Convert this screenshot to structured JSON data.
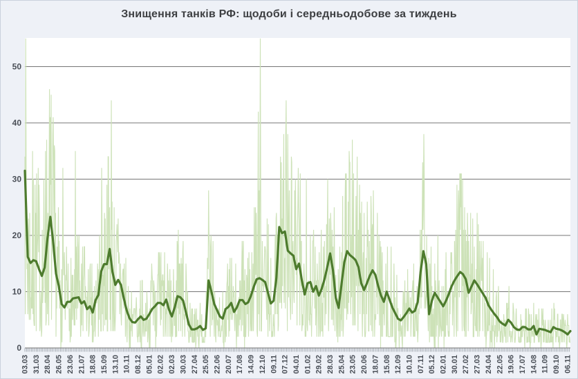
{
  "title": "Знищення танків РФ: щодоби і середньодобове за тиждень",
  "colors": {
    "page_bg": "#eef1f7",
    "plot_bg": "#ffffff",
    "border": "#c9d1dc",
    "daily_line": "#cde2b8",
    "average_line": "#4d7b2d",
    "grid": "#757575",
    "axis_line": "#757575",
    "tick": "#9299a1",
    "axis_text": "#4a4f57",
    "title_text": "#3d3f42"
  },
  "chart_data": {
    "type": "line",
    "title": "Знищення танків РФ: щодоби і середньодобове за тиждень",
    "xlabel": "",
    "ylabel": "",
    "grid": "horizontal",
    "ylim": [
      0,
      55
    ],
    "y_axis": {
      "ticks": [
        0,
        10,
        20,
        30,
        40,
        50
      ]
    },
    "x_axis": {
      "start_label": "03.03",
      "label_step_days": 28,
      "tick_every_days": 4,
      "labels": [
        "03.03",
        "31.03",
        "28.04",
        "26.05",
        "23.06",
        "21.07",
        "18.08",
        "15.09",
        "13.10",
        "10.11",
        "08.12",
        "05.01",
        "02.02",
        "02.03",
        "30.03",
        "27.04",
        "25.05",
        "22.06",
        "20.07",
        "17.08",
        "14.09",
        "12.10",
        "09.11",
        "07.12",
        "04.01",
        "01.02",
        "29.02",
        "28.03",
        "25.04",
        "23.05",
        "20.06",
        "18.07",
        "15.08",
        "12.09",
        "10.10",
        "07.11",
        "05.12",
        "02.01",
        "30.01",
        "27.02",
        "27.03",
        "24.04",
        "22.05",
        "19.06",
        "17.07",
        "14.08",
        "11.09",
        "09.10",
        "06.11"
      ]
    },
    "series": [
      {
        "name": "щодоби",
        "role": "daily",
        "color_key": "daily_line",
        "note": "daily destroyed-tank counts; jagged thin line ranging 0–55, major visible peaks in daily_peaks"
      },
      {
        "name": "середньодобове за тиждень",
        "role": "weekly_average",
        "color_key": "average_line",
        "step_days": 7,
        "values": [
          31.5,
          16.2,
          15.1,
          15.6,
          15.4,
          14.0,
          12.8,
          14.3,
          19.5,
          23.3,
          18.9,
          13.2,
          11.0,
          7.8,
          7.2,
          8.2,
          8.2,
          8.8,
          8.9,
          9.0,
          7.9,
          8.3,
          6.9,
          7.4,
          6.3,
          8.5,
          9.4,
          13.6,
          14.9,
          14.9,
          17.6,
          13.5,
          11.2,
          12.1,
          11.2,
          8.8,
          6.7,
          5.3,
          4.6,
          4.5,
          5.1,
          5.6,
          5.0,
          5.2,
          6.0,
          6.9,
          7.4,
          8.0,
          8.0,
          7.6,
          8.6,
          6.8,
          5.6,
          7.2,
          9.2,
          9.0,
          8.4,
          6.3,
          4.2,
          3.3,
          3.3,
          3.5,
          3.9,
          3.2,
          3.5,
          12.0,
          10.0,
          7.8,
          6.7,
          5.6,
          5.2,
          6.9,
          7.3,
          8.0,
          6.4,
          7.2,
          8.5,
          8.5,
          7.8,
          8.1,
          9.3,
          10.9,
          12.2,
          12.4,
          12.1,
          11.7,
          9.8,
          7.9,
          8.4,
          12.5,
          21.5,
          20.4,
          20.7,
          17.3,
          16.8,
          16.4,
          14.0,
          15.0,
          12.0,
          9.5,
          11.5,
          11.7,
          10.0,
          11.0,
          9.3,
          10.5,
          12.2,
          14.4,
          16.8,
          13.8,
          8.9,
          7.1,
          11.2,
          15.2,
          17.2,
          16.5,
          16.1,
          15.6,
          14.4,
          11.5,
          10.3,
          11.5,
          12.8,
          13.8,
          13.0,
          11.0,
          9.3,
          8.2,
          10.0,
          8.6,
          7.2,
          6.2,
          5.2,
          4.9,
          5.5,
          6.2,
          7.0,
          6.3,
          6.6,
          8.2,
          13.5,
          17.2,
          14.9,
          6.0,
          8.4,
          9.8,
          9.0,
          8.2,
          7.4,
          8.4,
          9.6,
          11.0,
          12.0,
          12.8,
          13.5,
          13.1,
          12.2,
          9.8,
          10.9,
          12.0,
          11.3,
          10.5,
          9.7,
          8.9,
          7.6,
          6.8,
          6.1,
          5.5,
          4.7,
          4.3,
          4.0,
          5.0,
          4.5,
          3.7,
          3.3,
          3.2,
          3.7,
          3.7,
          3.3,
          3.3,
          3.9,
          2.4,
          3.4,
          3.3,
          3.2,
          3.0,
          2.8,
          3.7,
          3.4,
          3.3,
          3.1,
          2.8,
          2.4,
          3.0
        ]
      }
    ],
    "daily_peaks": [
      [
        0,
        34
      ],
      [
        3,
        33
      ],
      [
        25,
        29
      ],
      [
        51,
        35
      ],
      [
        60,
        30
      ],
      [
        94,
        32
      ],
      [
        125,
        35
      ],
      [
        191,
        24
      ],
      [
        209,
        23
      ],
      [
        214,
        44
      ],
      [
        380,
        21
      ],
      [
        457,
        18
      ],
      [
        578,
        42
      ],
      [
        583,
        55
      ],
      [
        647,
        44
      ],
      [
        697,
        30
      ],
      [
        750,
        30
      ],
      [
        794,
        31
      ],
      [
        848,
        26
      ],
      [
        873,
        24
      ],
      [
        984,
        24
      ],
      [
        1078,
        21
      ],
      [
        1109,
        23
      ],
      [
        1199,
        11
      ]
    ],
    "daily_render": {
      "seed": 7,
      "f_min": 0.18,
      "f_span": 2.15,
      "f_pow": 1.6,
      "zero_prob": 0.05,
      "max": 55
    }
  }
}
